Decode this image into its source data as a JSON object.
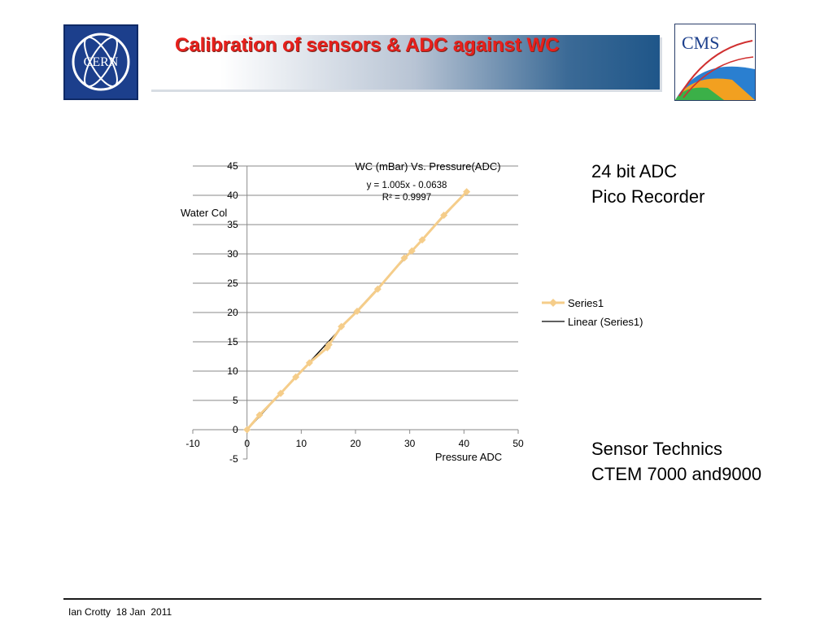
{
  "slide": {
    "title": "Calibration of sensors & ADC against WC",
    "side_top_line1": "24 bit ADC",
    "side_top_line2": "Pico Recorder",
    "side_bottom_line1": "Sensor Technics",
    "side_bottom_line2": "CTEM 7000 and9000",
    "footer": "Ian Crotty  18 Jan  2011",
    "cern_logo_text": "CERN",
    "cms_logo_text": "CMS",
    "colors": {
      "title": "#e8201c",
      "banner_end": "#1f5689",
      "series": "#f5cd8a",
      "trendline": "#000000"
    }
  },
  "chart_data": {
    "type": "scatter",
    "title": "WC (mBar)    Vs.    Pressure(ADC)",
    "xlabel": "Pressure ADC",
    "ylabel": "Water Col",
    "xlim": [
      -10,
      50
    ],
    "ylim": [
      -5,
      45
    ],
    "x_ticks": [
      -10,
      0,
      10,
      20,
      30,
      40,
      50
    ],
    "y_ticks": [
      -5,
      0,
      5,
      10,
      15,
      20,
      25,
      30,
      35,
      40,
      45
    ],
    "grid": "horizontal",
    "legend_position": "right",
    "series": [
      {
        "name": "Series1",
        "marker": "diamond",
        "color": "#f5cd8a",
        "x": [
          0,
          2.3,
          6.2,
          9.0,
          11.5,
          14.8,
          15.1,
          17.4,
          20.3,
          24.1,
          29.0,
          30.4,
          32.3,
          36.3,
          40.5
        ],
        "y": [
          0,
          2.5,
          6.2,
          9.0,
          11.4,
          14.0,
          14.5,
          17.6,
          20.2,
          24.0,
          29.3,
          30.5,
          32.4,
          36.6,
          40.6
        ]
      }
    ],
    "trendline": {
      "name": "Linear (Series1)",
      "slope": 1.005,
      "intercept": -0.0638,
      "x_range": [
        0,
        40.5
      ],
      "equation": "y = 1.005x - 0.0638",
      "r_squared": "R² = 0.9997"
    }
  }
}
